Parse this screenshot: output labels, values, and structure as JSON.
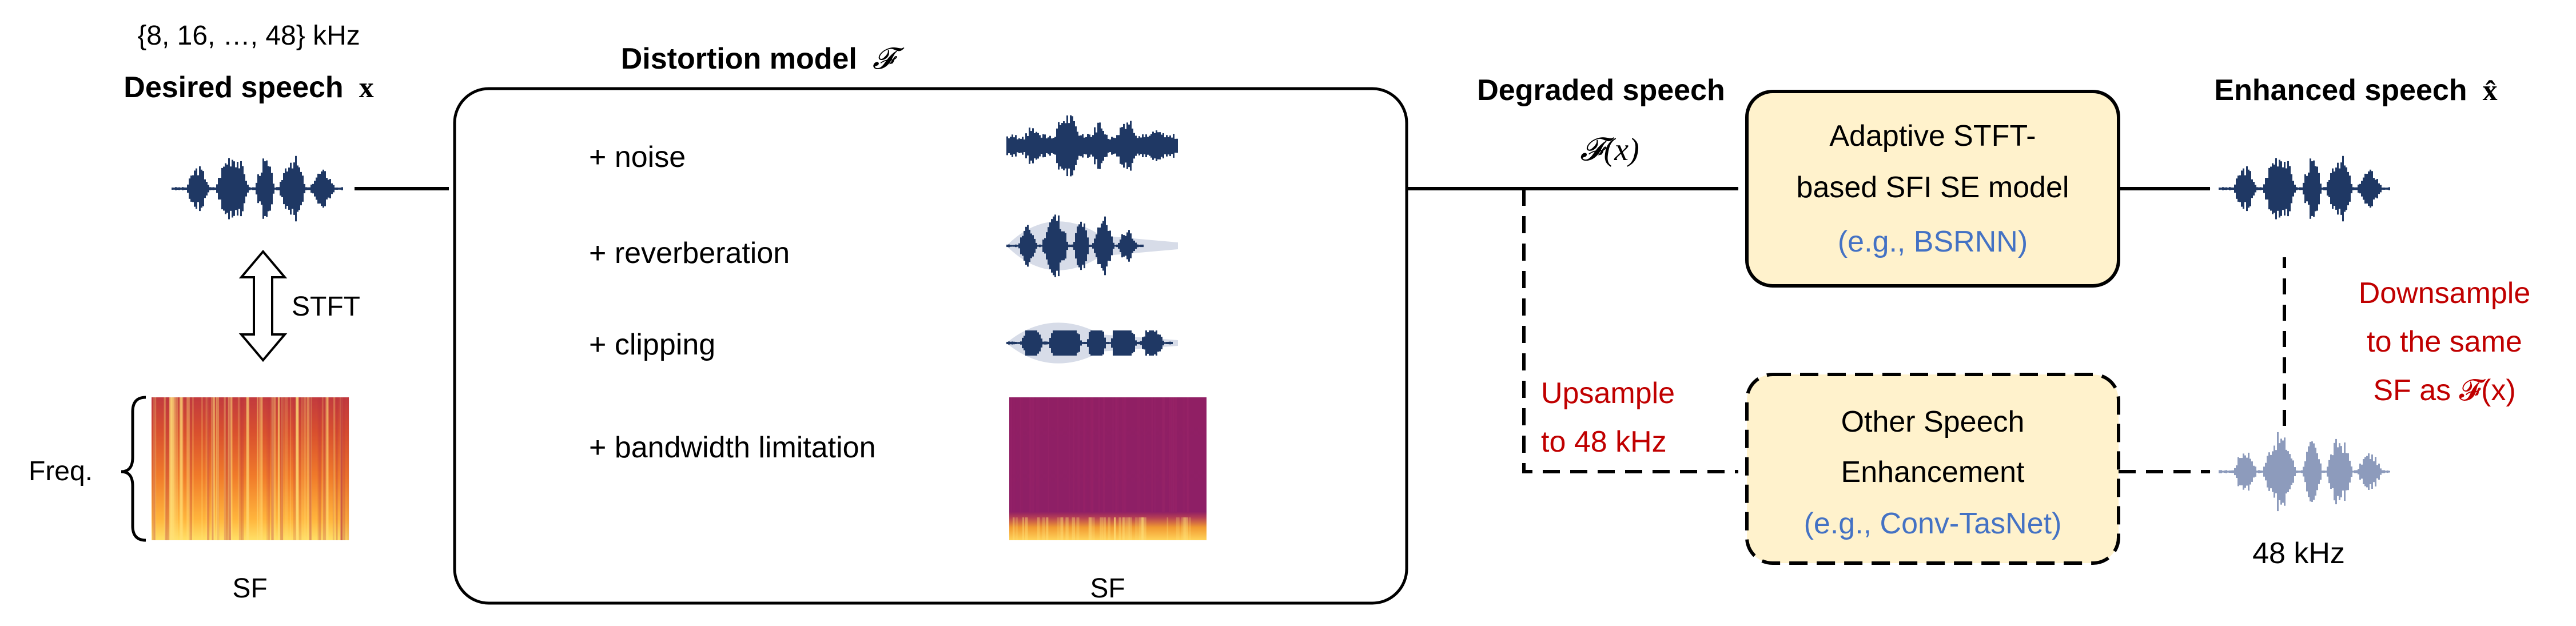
{
  "colors": {
    "wave_dark": "#1f3864",
    "wave_light": "#8d9bbc",
    "box_fill": "#fff2cc",
    "blue_text": "#4472c4",
    "red_text": "#c00000",
    "spec_high": "#ffd35a",
    "spec_mid": "#e0522e",
    "spec_low": "#8e1f66"
  },
  "input": {
    "sr_set": "{8, 16, …, 48} kHz",
    "title": "Desired speech",
    "symbol": "x",
    "stft_label": "STFT",
    "freq_label": "Freq.",
    "sf_label": "SF"
  },
  "distortion": {
    "title": "Distortion model",
    "symbol": "𝓕",
    "items": [
      "+ noise",
      "+ reverberation",
      "+ clipping",
      "+ bandwidth limitation"
    ],
    "sf_label": "SF"
  },
  "degraded": {
    "title": "Degraded speech",
    "formula": "𝓕(x)"
  },
  "adaptive_model": {
    "line1": "Adaptive STFT-",
    "line2": "based SFI SE model",
    "example": "(e.g., BSRNN)"
  },
  "other_model": {
    "line1": "Other Speech",
    "line2": "Enhancement",
    "example": "(e.g., Conv-TasNet)"
  },
  "upsample": {
    "line1": "Upsample",
    "line2": "to 48 kHz"
  },
  "downsample": {
    "line1": "Downsample",
    "line2": "to the same",
    "line3": "SF as 𝓕(x)"
  },
  "enhanced": {
    "title": "Enhanced speech",
    "symbol": "x̂"
  },
  "output_48k": "48 kHz",
  "icons": [
    "waveform-icon",
    "spectrogram-icon",
    "double-arrow-icon",
    "curly-brace-icon"
  ]
}
